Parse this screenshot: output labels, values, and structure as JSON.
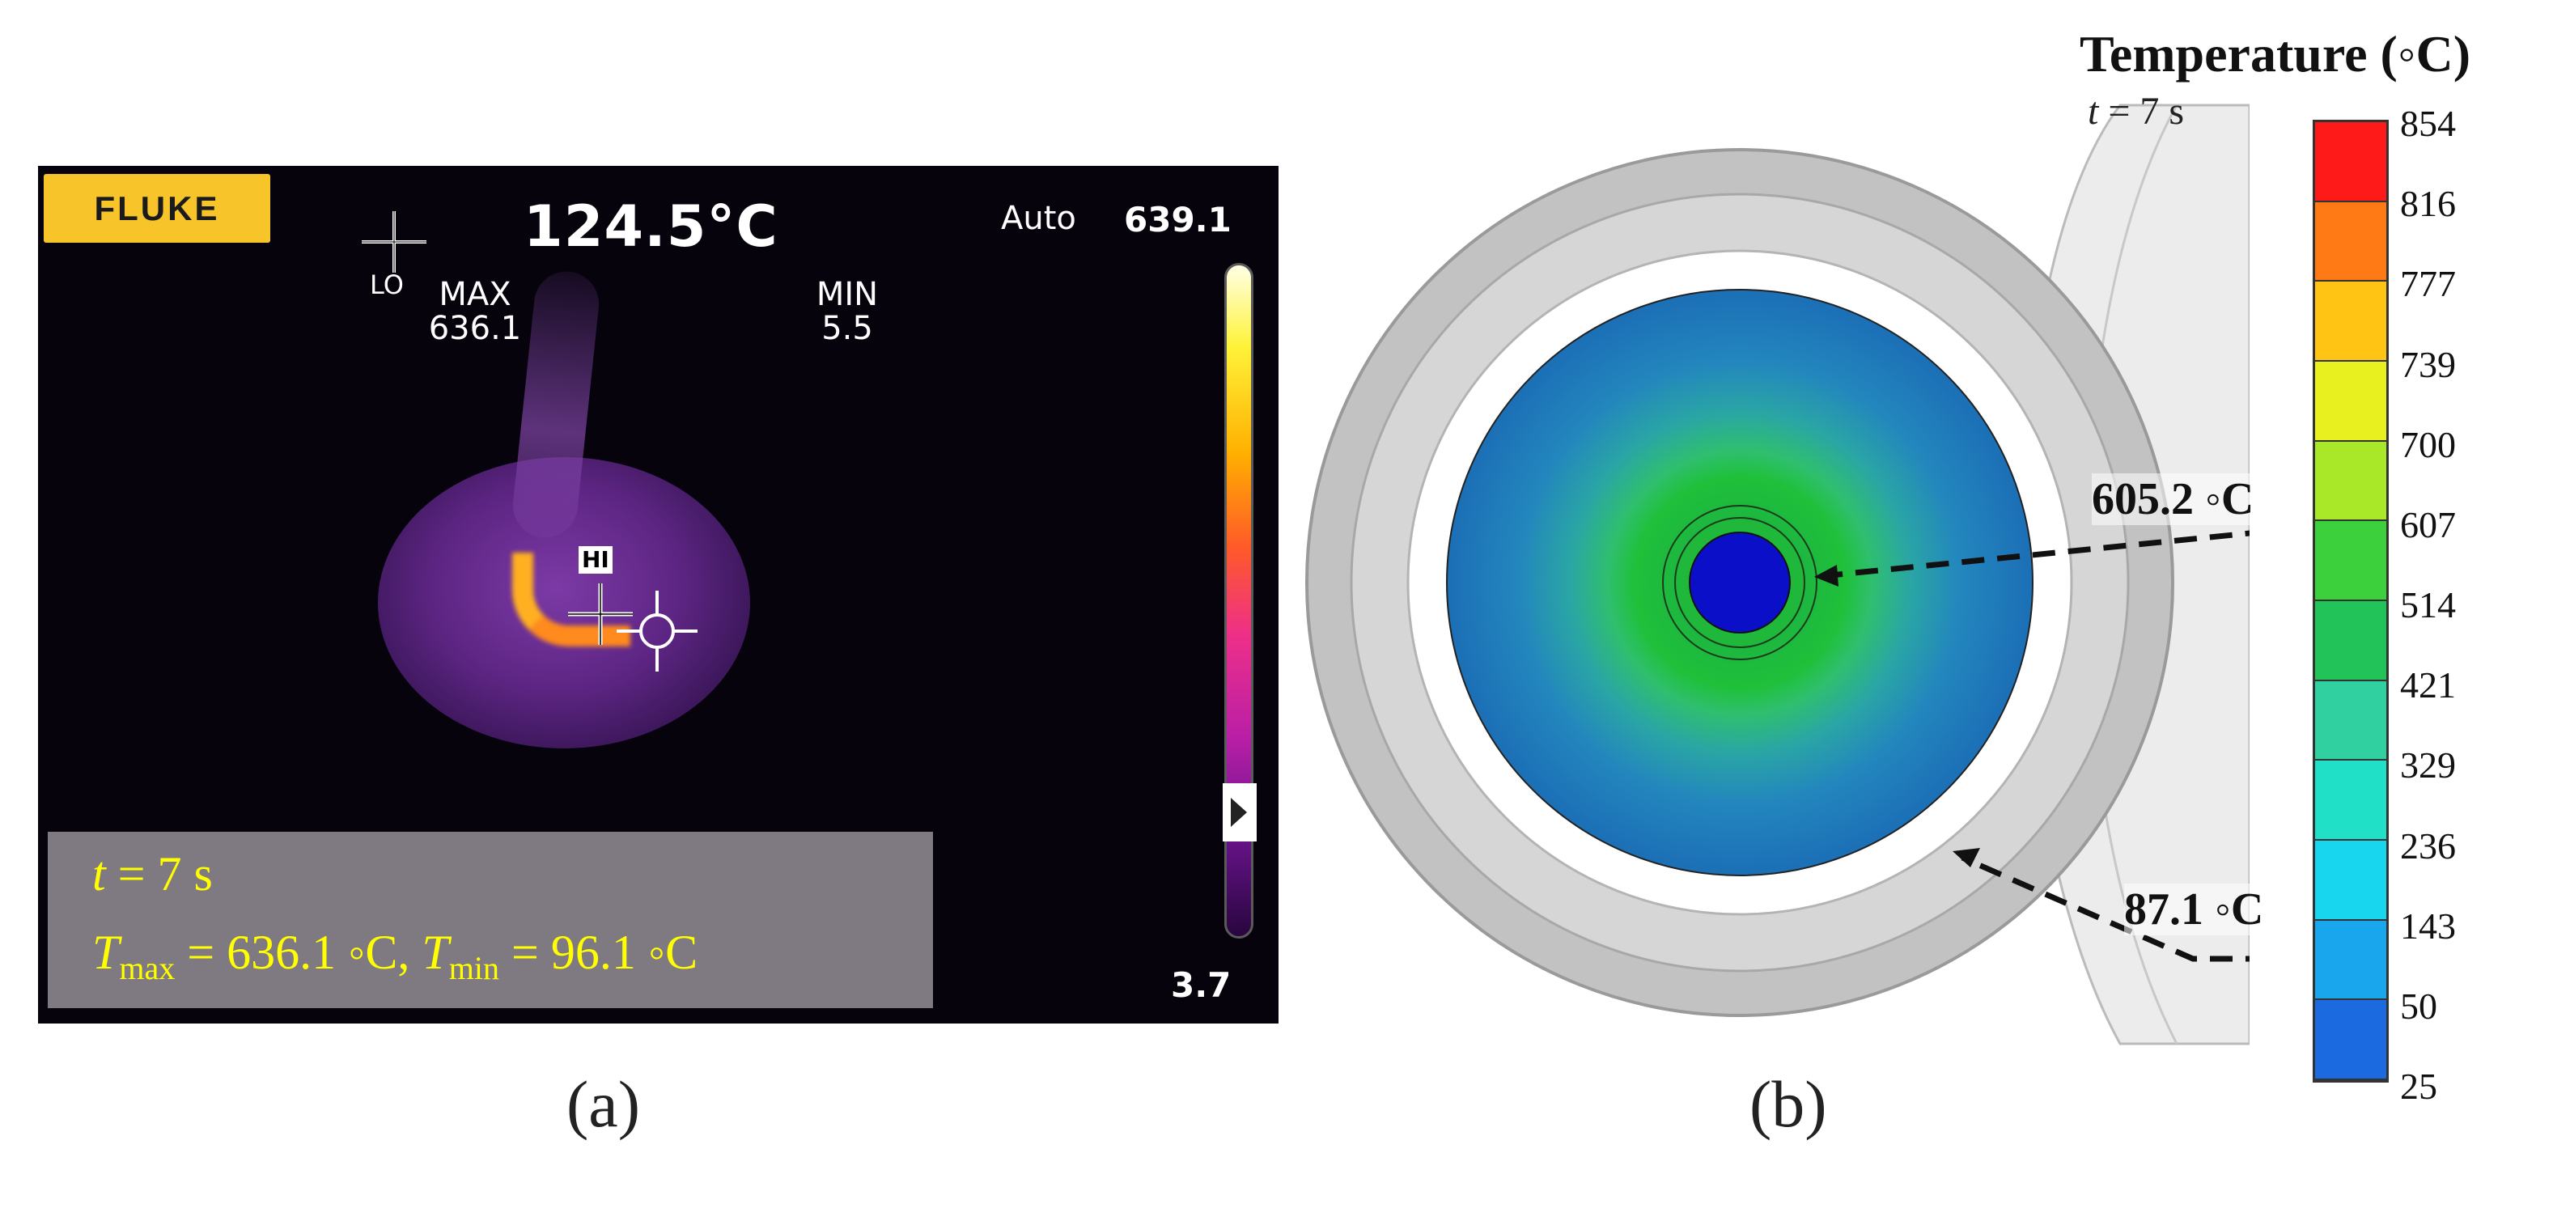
{
  "panel_a": {
    "logo": "FLUKE",
    "center_temp": "124.5°C",
    "auto_label": "Auto",
    "range_high": "639.1",
    "range_low": "3.7",
    "max_label": "MAX",
    "max_value": "636.1",
    "min_label": "MIN",
    "min_value": "5.5",
    "lo_label": "LO",
    "hi_label": "HI",
    "caption": {
      "t": "t",
      "t_value": " = 7 s",
      "tmax_T": "T",
      "tmax_sub": "max",
      "tmax_value": " = 636.1 ◦C, ",
      "tmin_T": "T",
      "tmin_sub": "min",
      "tmin_value": " = 96.1 ◦C"
    },
    "colorbar_level": 0.17,
    "label": "(a)"
  },
  "panel_b": {
    "legend_title": "Temperature (◦C)",
    "time_t": "t",
    "time_value": " = 7 s",
    "legend_ticks": [
      "854",
      "816",
      "777",
      "739",
      "700",
      "607",
      "514",
      "421",
      "329",
      "236",
      "143",
      "50",
      "25"
    ],
    "legend_colors": [
      "#ff1a1a",
      "#ff7a14",
      "#ffc414",
      "#e8f020",
      "#a8e828",
      "#3cd03c",
      "#22c45a",
      "#30d0a0",
      "#20e0c8",
      "#18d6ee",
      "#1aa6ec",
      "#1c6ae0",
      "#1414e0"
    ],
    "annotation_hot": "605.2 ◦C",
    "annotation_cold": "87.1 ◦C",
    "label": "(b)"
  },
  "colors": {
    "fluke_yellow": "#f7c52a",
    "caption_text": "#ffff00",
    "core_blue": "#0b10c8",
    "disk_blue": "#1c6fb6"
  }
}
